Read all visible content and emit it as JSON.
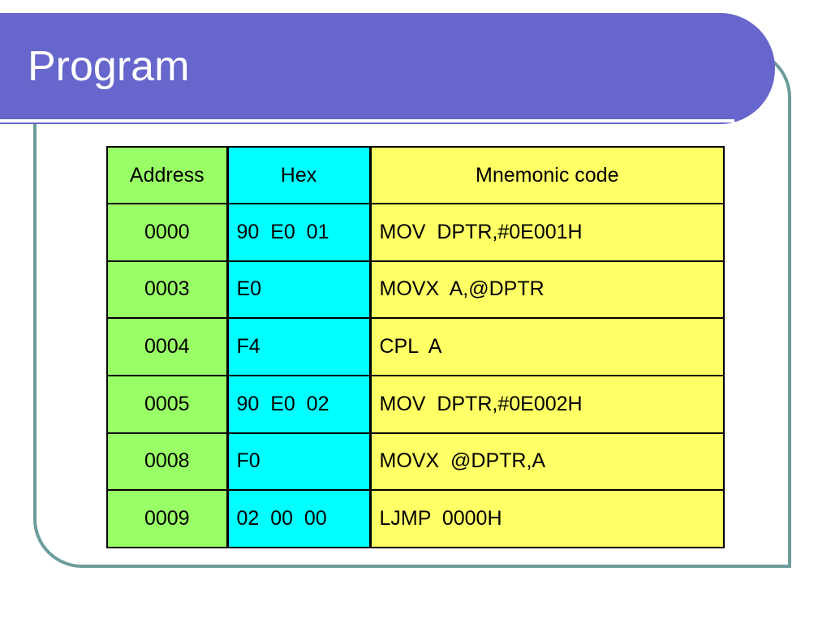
{
  "slide": {
    "title": "Program"
  },
  "table": {
    "headers": {
      "address": "Address",
      "hex": "Hex",
      "mnemonic": "Mnemonic code"
    },
    "rows": [
      {
        "address": "0000",
        "hex": "90  E0  01",
        "mnemonic": "MOV  DPTR,#0E001H"
      },
      {
        "address": "0003",
        "hex": "E0",
        "mnemonic": "MOVX  A,@DPTR"
      },
      {
        "address": "0004",
        "hex": "F4",
        "mnemonic": "CPL  A"
      },
      {
        "address": "0005",
        "hex": "90  E0  02",
        "mnemonic": "MOV  DPTR,#0E002H"
      },
      {
        "address": "0008",
        "hex": "F0",
        "mnemonic": "MOVX  @DPTR,A"
      },
      {
        "address": "0009",
        "hex": "02  00  00",
        "mnemonic": "LJMP  0000H"
      }
    ]
  },
  "colors": {
    "title_bar": "#6666cc",
    "frame_border": "#6b9c9c",
    "address_column": "#99ff66",
    "hex_column": "#00ffff",
    "mnemonic_column": "#ffff66"
  }
}
